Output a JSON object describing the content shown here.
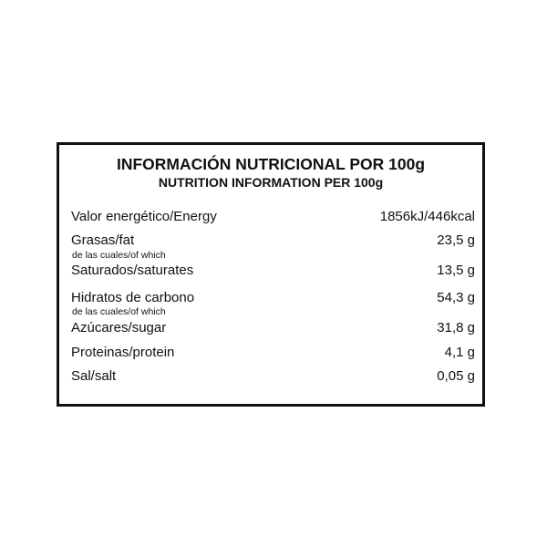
{
  "title_es": "INFORMACIÓN NUTRICIONAL POR 100g",
  "title_en": "NUTRITION INFORMATION PER 100g",
  "rows": [
    {
      "label": "Valor energético/Energy",
      "value": "1856kJ/446kcal"
    },
    {
      "label": "Grasas/fat",
      "value": "23,5 g"
    },
    {
      "label": "Saturados/saturates",
      "value": "13,5 g"
    },
    {
      "label": "Hidratos de carbono",
      "value": "54,3 g"
    },
    {
      "label": "Azúcares/sugar",
      "value": "31,8 g"
    },
    {
      "label": "Proteinas/protein",
      "value": "4,1 g"
    },
    {
      "label": "Sal/salt",
      "value": "0,05 g"
    }
  ],
  "sublabels": [
    "de las cuales/of which",
    "de las cuales/of which"
  ]
}
